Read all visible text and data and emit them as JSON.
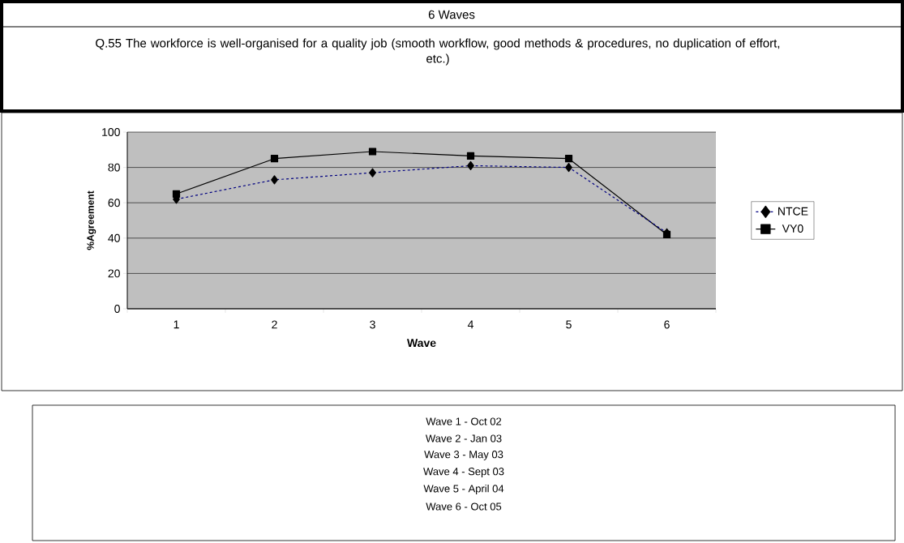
{
  "chart_data": {
    "type": "line",
    "title": "6 Waves",
    "subtitle": "Q.55 The workforce is well-organised for a quality job (smooth workflow, good methods & procedures, no duplication of effort, etc.)",
    "xlabel": "Wave",
    "ylabel": "%Agreement",
    "categories": [
      "1",
      "2",
      "3",
      "4",
      "5",
      "6"
    ],
    "series": [
      {
        "name": "NTCE",
        "color": "#000080",
        "values": [
          62,
          73,
          77,
          81,
          80,
          43
        ],
        "marker": "diamond",
        "line_style": "dashed"
      },
      {
        "name": "VY0",
        "color": "#000000",
        "values": [
          65,
          85,
          89,
          86.5,
          85,
          42
        ],
        "marker": "square",
        "line_style": "solid"
      }
    ],
    "ylim": [
      0,
      100
    ],
    "yticks": [
      0,
      20,
      40,
      60,
      80,
      100
    ],
    "grid": "y",
    "legend": "right",
    "annotations": [
      "Wave 1 - Oct 02",
      "Wave 2 - Jan 03",
      "Wave 3 - May 03",
      "Wave 4 - Sept 03",
      "Wave 5 - April 04",
      "Wave 6 - Oct 05"
    ]
  }
}
